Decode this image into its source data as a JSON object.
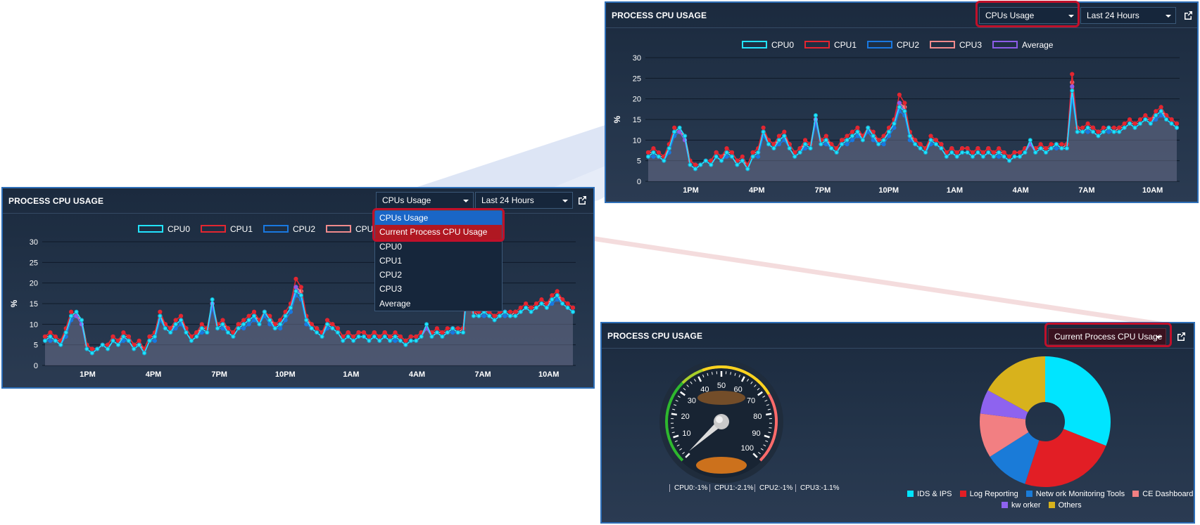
{
  "colors": {
    "cpu0": "#22e3ff",
    "cpu1": "#e32630",
    "cpu2": "#1978e0",
    "cpu3": "#f08a8c",
    "average": "#8c5ce8",
    "highlight": "#c0102a"
  },
  "panels": {
    "top": {
      "title": "PROCESS CPU USAGE",
      "select_view": "CPUs Usage",
      "select_range": "Last 24 Hours",
      "popout_icon": "external-link-icon"
    },
    "left": {
      "title": "PROCESS CPU USAGE",
      "select_view": "CPUs Usage",
      "select_range": "Last 24 Hours",
      "popout_icon": "external-link-icon",
      "dropdown_options": [
        "CPUs Usage",
        "Current Process CPU Usage",
        "CPU0",
        "CPU1",
        "CPU2",
        "CPU3",
        "Average"
      ]
    },
    "bottom": {
      "title": "PROCESS CPU USAGE",
      "select_view": "Current Process CPU Usage",
      "popout_icon": "external-link-icon"
    }
  },
  "chart_data": [
    {
      "type": "line",
      "ylabel": "%",
      "ylim": [
        0,
        30
      ],
      "yticks": [
        "0",
        "5",
        "10",
        "15",
        "20",
        "25",
        "30"
      ],
      "xticks": [
        "1PM",
        "4PM",
        "7PM",
        "10PM",
        "1AM",
        "4AM",
        "7AM",
        "10AM"
      ],
      "legend": [
        "CPU0",
        "CPU1",
        "CPU2",
        "CPU3",
        "Average"
      ],
      "series": [
        {
          "name": "CPU0",
          "values": [
            6,
            7,
            6,
            5,
            8,
            12,
            13,
            11,
            4,
            3,
            4,
            5,
            4,
            6,
            5,
            7,
            6,
            4,
            5,
            3,
            6,
            7,
            12,
            9,
            8,
            10,
            11,
            8,
            6,
            7,
            9,
            8,
            16,
            9,
            10,
            8,
            7,
            9,
            10,
            11,
            12,
            10,
            13,
            11,
            9,
            10,
            12,
            14,
            18,
            17,
            11,
            9,
            8,
            7,
            10,
            9,
            8,
            6,
            7,
            6,
            7,
            7,
            6,
            7,
            6,
            7,
            6,
            7,
            6,
            5,
            6,
            6,
            7,
            10,
            7,
            8,
            7,
            8,
            9,
            8,
            8,
            22,
            12,
            12,
            13,
            12,
            11,
            12,
            13,
            12,
            12,
            13,
            14,
            13,
            14,
            15,
            14,
            16,
            17,
            15,
            14,
            13
          ]
        },
        {
          "name": "CPU1",
          "values": [
            7,
            8,
            7,
            6,
            9,
            13,
            12,
            10,
            5,
            4,
            4,
            5,
            5,
            7,
            6,
            8,
            7,
            5,
            6,
            4,
            7,
            8,
            13,
            10,
            9,
            11,
            12,
            9,
            7,
            8,
            10,
            9,
            15,
            10,
            11,
            9,
            8,
            10,
            11,
            12,
            13,
            11,
            13,
            12,
            10,
            11,
            13,
            15,
            21,
            19,
            12,
            10,
            9,
            8,
            11,
            10,
            9,
            7,
            8,
            7,
            8,
            8,
            7,
            8,
            7,
            8,
            7,
            8,
            7,
            6,
            7,
            7,
            8,
            9,
            8,
            9,
            8,
            9,
            9,
            9,
            9,
            26,
            13,
            13,
            14,
            13,
            12,
            13,
            13,
            13,
            13,
            14,
            15,
            14,
            15,
            16,
            15,
            17,
            18,
            16,
            15,
            14
          ]
        },
        {
          "name": "CPU2",
          "values": [
            6,
            6,
            6,
            5,
            7,
            11,
            12,
            10,
            4,
            3,
            4,
            5,
            4,
            6,
            5,
            6,
            6,
            4,
            5,
            3,
            6,
            6,
            11,
            9,
            8,
            9,
            10,
            8,
            6,
            7,
            8,
            8,
            14,
            9,
            9,
            8,
            7,
            9,
            9,
            10,
            11,
            10,
            12,
            10,
            9,
            9,
            11,
            13,
            17,
            16,
            10,
            9,
            8,
            7,
            9,
            9,
            8,
            6,
            7,
            6,
            7,
            7,
            6,
            7,
            6,
            7,
            6,
            6,
            6,
            5,
            6,
            6,
            7,
            9,
            7,
            8,
            7,
            8,
            8,
            8,
            8,
            20,
            12,
            12,
            12,
            12,
            11,
            12,
            12,
            12,
            12,
            13,
            14,
            13,
            14,
            15,
            14,
            15,
            16,
            15,
            14,
            13
          ]
        },
        {
          "name": "CPU3",
          "values": [
            7,
            7,
            6,
            6,
            8,
            12,
            12,
            11,
            5,
            4,
            4,
            5,
            5,
            7,
            6,
            7,
            7,
            5,
            5,
            4,
            7,
            7,
            12,
            10,
            9,
            10,
            11,
            9,
            7,
            8,
            9,
            9,
            15,
            10,
            10,
            9,
            8,
            10,
            10,
            11,
            12,
            11,
            13,
            11,
            10,
            10,
            12,
            14,
            19,
            18,
            11,
            10,
            9,
            8,
            10,
            10,
            9,
            7,
            8,
            7,
            8,
            8,
            7,
            8,
            7,
            8,
            7,
            7,
            7,
            6,
            7,
            7,
            8,
            9,
            8,
            8,
            8,
            8,
            9,
            8,
            9,
            24,
            13,
            12,
            13,
            13,
            12,
            12,
            13,
            12,
            13,
            13,
            14,
            14,
            14,
            15,
            15,
            16,
            17,
            16,
            15,
            14
          ]
        },
        {
          "name": "Average",
          "values": [
            6,
            7,
            6,
            5,
            8,
            12,
            12,
            10,
            4,
            3,
            4,
            5,
            4,
            6,
            5,
            7,
            6,
            4,
            5,
            3,
            6,
            7,
            12,
            9,
            8,
            10,
            11,
            8,
            6,
            7,
            9,
            8,
            15,
            9,
            10,
            8,
            7,
            9,
            10,
            11,
            12,
            10,
            13,
            11,
            9,
            10,
            12,
            14,
            19,
            17,
            11,
            9,
            8,
            7,
            10,
            9,
            8,
            6,
            7,
            6,
            7,
            7,
            6,
            7,
            6,
            7,
            6,
            7,
            6,
            5,
            6,
            6,
            7,
            9,
            7,
            8,
            7,
            8,
            9,
            8,
            8,
            23,
            12,
            12,
            13,
            12,
            11,
            12,
            13,
            12,
            12,
            13,
            14,
            13,
            14,
            15,
            14,
            16,
            17,
            15,
            14,
            13
          ]
        }
      ]
    },
    {
      "type": "gauge",
      "ticks": [
        "10",
        "20",
        "30",
        "40",
        "50",
        "60",
        "70",
        "80",
        "90",
        "100"
      ],
      "value": 1,
      "readouts": [
        "CPU0:-1%",
        "CPU1:-2.1%",
        "CPU2:-1%",
        "CPU3:-1.1%"
      ]
    },
    {
      "type": "pie",
      "labels": [
        "IDS & IPS",
        "Log Reporting",
        "Netw ork Monitoring Tools",
        "CE Dashboard",
        "kw orker",
        "Others"
      ],
      "values": [
        31,
        24,
        11,
        11,
        6,
        17
      ],
      "colors": [
        "#00e5ff",
        "#e21e25",
        "#1a7bd8",
        "#f27f82",
        "#8e63ef",
        "#d8b21c"
      ]
    }
  ]
}
